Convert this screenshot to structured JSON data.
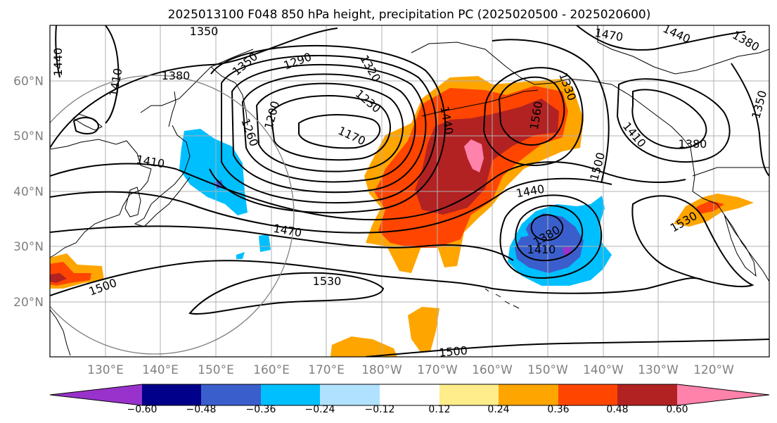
{
  "title": "2025013100 F048 850 hPa height, precipitation PC (2025020500 - 2025020600)",
  "lat_labels": [
    "60°N",
    "50°N",
    "40°N",
    "30°N",
    "20°N"
  ],
  "lon_labels": [
    "130°E",
    "140°E",
    "150°E",
    "160°E",
    "170°E",
    "180°W",
    "170°W",
    "160°W",
    "150°W",
    "140°W",
    "130°W",
    "120°W"
  ],
  "contour_labels": [
    "1350",
    "1440",
    "1380",
    "1410",
    "1350",
    "1290",
    "1320",
    "1470",
    "1440",
    "1380",
    "1350",
    "1230",
    "1200",
    "1260",
    "1170",
    "1440",
    "1330",
    "1560",
    "1410",
    "1380",
    "1410",
    "1500",
    "1440",
    "1470",
    "1380",
    "1410",
    "1530",
    "1500",
    "1530",
    "1500"
  ],
  "colorbar": {
    "ticks": [
      "−0.60",
      "−0.48",
      "−0.36",
      "−0.24",
      "−0.12",
      "0.12",
      "0.24",
      "0.36",
      "0.48",
      "0.60"
    ],
    "colors": [
      "#9932cc",
      "#00008b",
      "#3a5fcd",
      "#00bfff",
      "#b0e2ff",
      "#ffffff",
      "#ffec8b",
      "#ffa500",
      "#ff4500",
      "#b22222",
      "#ff82ab"
    ]
  },
  "colors": {
    "orange": "#ffa500",
    "orange_red": "#ff4500",
    "dark_red": "#b22222",
    "pink": "#ff82ab",
    "light_yellow": "#ffec8b",
    "deep_sky_blue": "#00bfff",
    "royal_blue": "#3a5fcd",
    "dark_orchid": "#9932cc",
    "gridline": "#b0b0b0",
    "tick_label": "#808080"
  }
}
